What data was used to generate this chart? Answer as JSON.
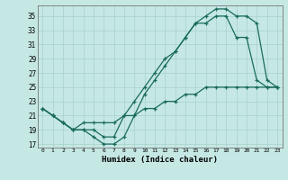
{
  "background_color": "#c5e8e5",
  "line_color": "#1a6b5a",
  "xlabel": "Humidex (Indice chaleur)",
  "xlim": [
    -0.5,
    23.5
  ],
  "ylim": [
    16.5,
    36.5
  ],
  "xticks": [
    0,
    1,
    2,
    3,
    4,
    5,
    6,
    7,
    8,
    9,
    10,
    11,
    12,
    13,
    14,
    15,
    16,
    17,
    18,
    19,
    20,
    21,
    22,
    23
  ],
  "yticks": [
    17,
    19,
    21,
    23,
    25,
    27,
    29,
    31,
    33,
    35
  ],
  "line1_x": [
    0,
    1,
    2,
    3,
    4,
    5,
    6,
    7,
    8,
    9,
    10,
    11,
    12,
    13,
    14,
    15,
    16,
    17,
    18,
    19,
    20,
    21,
    22,
    23
  ],
  "line1_y": [
    22,
    21,
    20,
    19,
    19,
    18,
    17,
    17,
    18,
    21,
    24,
    26,
    28,
    30,
    32,
    34,
    35,
    36,
    36,
    35,
    35,
    34,
    26,
    25
  ],
  "line2_x": [
    0,
    1,
    2,
    3,
    4,
    5,
    6,
    7,
    8,
    9,
    10,
    11,
    12,
    13,
    14,
    15,
    16,
    17,
    18,
    19,
    20,
    21,
    22,
    23
  ],
  "line2_y": [
    22,
    21,
    20,
    19,
    19,
    19,
    18,
    18,
    21,
    23,
    25,
    27,
    29,
    30,
    32,
    34,
    34,
    35,
    35,
    32,
    32,
    26,
    25,
    25
  ],
  "line3_x": [
    0,
    1,
    2,
    3,
    4,
    5,
    6,
    7,
    8,
    9,
    10,
    11,
    12,
    13,
    14,
    15,
    16,
    17,
    18,
    19,
    20,
    21,
    22,
    23
  ],
  "line3_y": [
    22,
    21,
    20,
    19,
    20,
    20,
    20,
    20,
    21,
    21,
    22,
    22,
    23,
    23,
    24,
    24,
    25,
    25,
    25,
    25,
    25,
    25,
    25,
    25
  ]
}
